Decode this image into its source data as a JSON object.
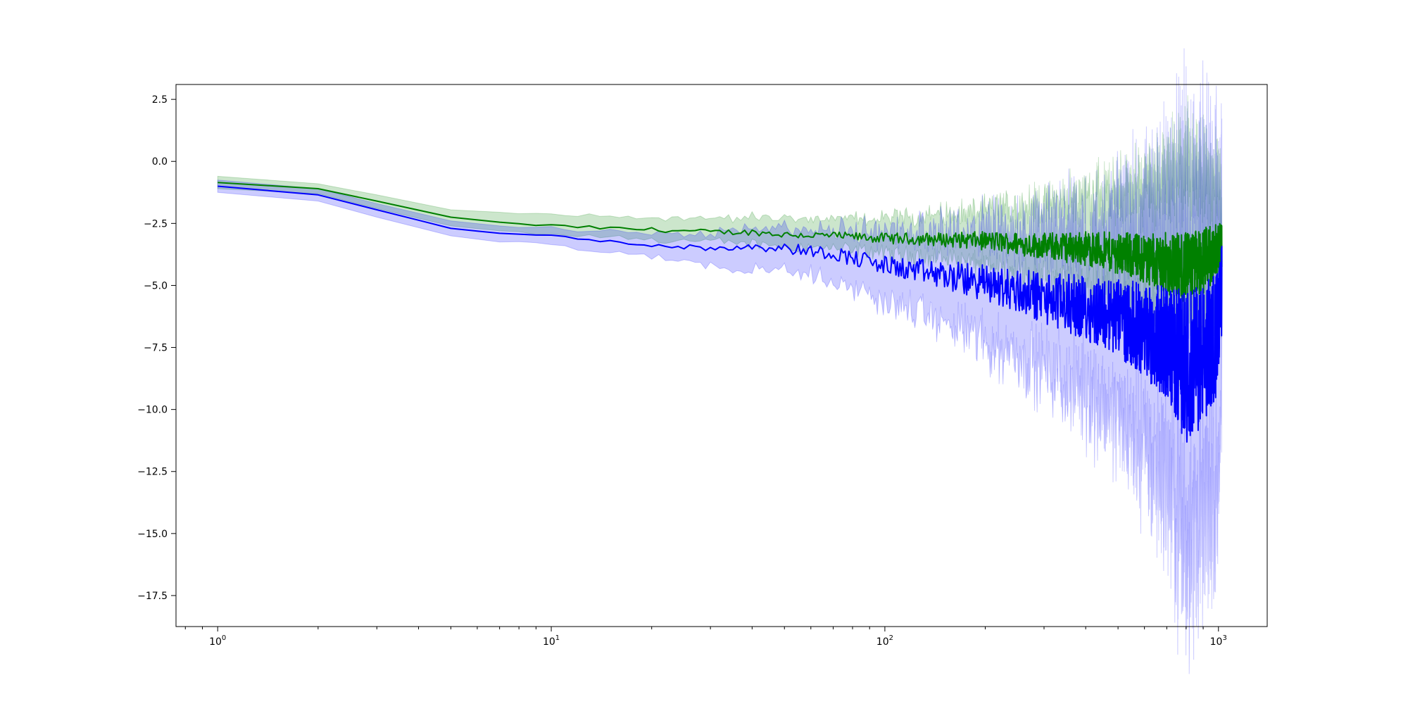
{
  "chart_data": {
    "type": "line",
    "title": "",
    "xlabel": "",
    "ylabel": "",
    "xscale": "log",
    "xlim": [
      0.75,
      1400
    ],
    "ylim": [
      -18.75,
      3.1
    ],
    "grid": false,
    "legend": "none",
    "x_ticks": [
      {
        "value": 1,
        "base": "10",
        "exp": "0"
      },
      {
        "value": 10,
        "base": "10",
        "exp": "1"
      },
      {
        "value": 100,
        "base": "10",
        "exp": "2"
      },
      {
        "value": 1000,
        "base": "10",
        "exp": "3"
      }
    ],
    "y_ticks": [
      {
        "value": 2.5,
        "label": "2.5"
      },
      {
        "value": 0,
        "label": "0.0"
      },
      {
        "value": -2.5,
        "label": "−2.5"
      },
      {
        "value": -5,
        "label": "−5.0"
      },
      {
        "value": -7.5,
        "label": "−7.5"
      },
      {
        "value": -10,
        "label": "−10.0"
      },
      {
        "value": -12.5,
        "label": "−12.5"
      },
      {
        "value": -15,
        "label": "−15.0"
      },
      {
        "value": -17.5,
        "label": "−17.5"
      }
    ],
    "series": [
      {
        "color": "#008000",
        "band_color": "#008000",
        "points": [
          {
            "x": 1,
            "mean": -0.85,
            "lower": -1.1,
            "upper": -0.6
          },
          {
            "x": 2,
            "mean": -1.1,
            "lower": -1.3,
            "upper": -0.9
          },
          {
            "x": 3,
            "mean": -1.6,
            "lower": -1.9,
            "upper": -1.35
          },
          {
            "x": 5,
            "mean": -2.25,
            "lower": -2.6,
            "upper": -1.95
          },
          {
            "x": 7,
            "mean": -2.45,
            "lower": -2.8,
            "upper": -2.05
          },
          {
            "x": 10,
            "mean": -2.6,
            "lower": -2.95,
            "upper": -2.15
          },
          {
            "x": 15,
            "mean": -2.7,
            "lower": -3.05,
            "upper": -2.25
          },
          {
            "x": 20,
            "mean": -2.75,
            "lower": -3.15,
            "upper": -2.25
          },
          {
            "x": 25,
            "mean": -2.8,
            "lower": -3.2,
            "upper": -2.3
          },
          {
            "x": 30,
            "mean": -2.85,
            "lower": -3.25,
            "upper": -2.3
          },
          {
            "x": 40,
            "mean": -2.85,
            "lower": -3.3,
            "upper": -2.25
          },
          {
            "x": 50,
            "mean": -2.95,
            "lower": -3.4,
            "upper": -2.3
          },
          {
            "x": 70,
            "mean": -3.0,
            "lower": -3.5,
            "upper": -2.35
          },
          {
            "x": 100,
            "mean": -3.1,
            "lower": -3.7,
            "upper": -2.3
          },
          {
            "x": 150,
            "mean": -3.15,
            "lower": -3.9,
            "upper": -2.15
          },
          {
            "x": 200,
            "mean": -3.2,
            "lower": -4.2,
            "upper": -2.0
          },
          {
            "x": 300,
            "mean": -3.4,
            "lower": -4.6,
            "upper": -1.7
          },
          {
            "x": 400,
            "mean": -3.5,
            "lower": -5.0,
            "upper": -1.4
          },
          {
            "x": 500,
            "mean": -3.7,
            "lower": -5.3,
            "upper": -1.2
          },
          {
            "x": 600,
            "mean": -3.9,
            "lower": -5.8,
            "upper": -0.9
          },
          {
            "x": 700,
            "mean": -4.1,
            "lower": -6.3,
            "upper": -0.5
          },
          {
            "x": 800,
            "mean": -4.3,
            "lower": -6.8,
            "upper": -0.2
          },
          {
            "x": 900,
            "mean": -4.0,
            "lower": -6.5,
            "upper": -0.5
          },
          {
            "x": 1000,
            "mean": -3.6,
            "lower": -6.0,
            "upper": -0.9
          },
          {
            "x": 1024,
            "mean": -3.3,
            "lower": -5.6,
            "upper": -1.2
          }
        ]
      },
      {
        "color": "#0000ff",
        "band_color": "#0000ff",
        "points": [
          {
            "x": 1,
            "mean": -1.0,
            "lower": -1.25,
            "upper": -0.75
          },
          {
            "x": 2,
            "mean": -1.35,
            "lower": -1.6,
            "upper": -1.1
          },
          {
            "x": 3,
            "mean": -1.95,
            "lower": -2.25,
            "upper": -1.7
          },
          {
            "x": 5,
            "mean": -2.7,
            "lower": -3.0,
            "upper": -2.4
          },
          {
            "x": 7,
            "mean": -2.9,
            "lower": -3.25,
            "upper": -2.6
          },
          {
            "x": 10,
            "mean": -3.0,
            "lower": -3.35,
            "upper": -2.7
          },
          {
            "x": 15,
            "mean": -3.25,
            "lower": -3.7,
            "upper": -2.85
          },
          {
            "x": 20,
            "mean": -3.35,
            "lower": -3.8,
            "upper": -2.9
          },
          {
            "x": 25,
            "mean": -3.45,
            "lower": -4.0,
            "upper": -2.95
          },
          {
            "x": 30,
            "mean": -3.5,
            "lower": -4.2,
            "upper": -2.9
          },
          {
            "x": 40,
            "mean": -3.4,
            "lower": -4.3,
            "upper": -2.6
          },
          {
            "x": 50,
            "mean": -3.5,
            "lower": -4.4,
            "upper": -2.7
          },
          {
            "x": 70,
            "mean": -3.7,
            "lower": -4.8,
            "upper": -2.8
          },
          {
            "x": 100,
            "mean": -4.2,
            "lower": -5.6,
            "upper": -2.9
          },
          {
            "x": 150,
            "mean": -4.6,
            "lower": -6.5,
            "upper": -2.9
          },
          {
            "x": 200,
            "mean": -4.9,
            "lower": -7.2,
            "upper": -2.8
          },
          {
            "x": 300,
            "mean": -5.5,
            "lower": -8.3,
            "upper": -2.8
          },
          {
            "x": 400,
            "mean": -5.9,
            "lower": -9.3,
            "upper": -2.6
          },
          {
            "x": 500,
            "mean": -6.3,
            "lower": -10.2,
            "upper": -2.5
          },
          {
            "x": 600,
            "mean": -6.8,
            "lower": -11.5,
            "upper": -2.3
          },
          {
            "x": 700,
            "mean": -7.3,
            "lower": -12.8,
            "upper": -2.0
          },
          {
            "x": 800,
            "mean": -8.3,
            "lower": -15.5,
            "upper": -1.4
          },
          {
            "x": 900,
            "mean": -7.8,
            "lower": -14.5,
            "upper": -1.6
          },
          {
            "x": 1000,
            "mean": -6.8,
            "lower": -13.0,
            "upper": -1.8
          },
          {
            "x": 1024,
            "mean": -5.2,
            "lower": -10.0,
            "upper": -1.5
          }
        ]
      }
    ]
  }
}
